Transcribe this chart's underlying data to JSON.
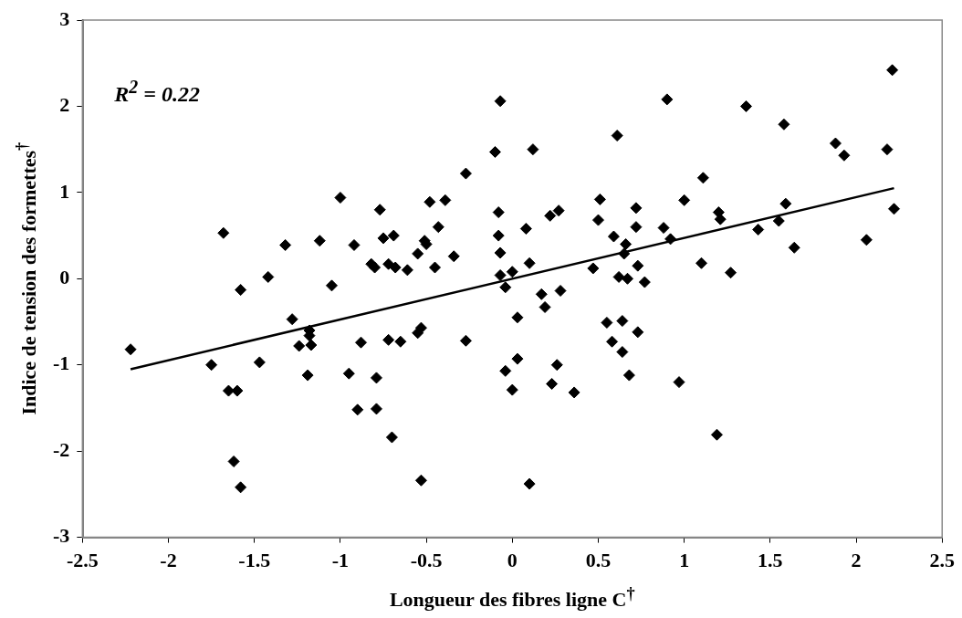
{
  "chart_data": {
    "type": "scatter",
    "xlabel": "Longueur des fibres ligne C$^{†}$",
    "ylabel": "Indice de tension des formettes$^{†}$",
    "annotations": [
      "R$^{2}$ = 0.22"
    ],
    "xlim": [
      -2.5,
      2.5
    ],
    "xticks": [
      -2.5,
      -2,
      -1.5,
      -1,
      -0.5,
      0,
      0.5,
      1,
      1.5,
      2,
      2.5
    ],
    "ylim": [
      -3,
      3
    ],
    "yticks": [
      -3,
      -2,
      -1,
      0,
      1,
      2,
      3
    ],
    "grid": false,
    "legend": false,
    "series": [
      {
        "marker": "diamond",
        "color": "#000000",
        "x": [
          -2.22,
          -1.75,
          -1.68,
          -1.65,
          -1.6,
          -1.62,
          -1.58,
          -1.58,
          -1.47,
          -1.42,
          -1.32,
          -1.28,
          -1.24,
          -1.19,
          -1.18,
          -1.18,
          -1.17,
          -1.12,
          -1.05,
          -1.0,
          -0.95,
          -0.92,
          -0.9,
          -0.88,
          -0.82,
          -0.8,
          -0.79,
          -0.79,
          -0.77,
          -0.75,
          -0.72,
          -0.72,
          -0.7,
          -0.69,
          -0.68,
          -0.65,
          -0.61,
          -0.55,
          -0.55,
          -0.53,
          -0.53,
          -0.51,
          -0.5,
          -0.48,
          -0.45,
          -0.43,
          -0.39,
          -0.34,
          -0.27,
          -0.27,
          -0.1,
          -0.08,
          -0.08,
          -0.07,
          -0.07,
          -0.07,
          -0.04,
          -0.04,
          0.0,
          0.0,
          0.03,
          0.03,
          0.08,
          0.1,
          0.1,
          0.12,
          0.17,
          0.19,
          0.22,
          0.23,
          0.26,
          0.27,
          0.28,
          0.36,
          0.47,
          0.5,
          0.51,
          0.55,
          0.58,
          0.59,
          0.61,
          0.62,
          0.64,
          0.64,
          0.65,
          0.66,
          0.67,
          0.68,
          0.72,
          0.72,
          0.73,
          0.73,
          0.77,
          0.88,
          0.9,
          0.92,
          0.97,
          1.0,
          1.1,
          1.11,
          1.19,
          1.2,
          1.21,
          1.27,
          1.36,
          1.43,
          1.55,
          1.58,
          1.59,
          1.64,
          1.88,
          1.93,
          2.06,
          2.18,
          2.21,
          2.22
        ],
        "values": [
          -0.82,
          -1.0,
          0.53,
          -1.3,
          -1.3,
          -2.12,
          -2.42,
          -0.13,
          -0.97,
          0.02,
          0.39,
          -0.47,
          -0.78,
          -1.12,
          -0.6,
          -0.66,
          -0.77,
          0.44,
          -0.08,
          0.94,
          -1.1,
          0.39,
          -1.52,
          -0.74,
          0.17,
          0.13,
          -1.15,
          -1.51,
          0.8,
          0.47,
          0.17,
          -0.71,
          -1.84,
          0.5,
          0.13,
          -0.73,
          0.1,
          0.29,
          -0.63,
          -0.57,
          -2.34,
          0.44,
          0.4,
          0.89,
          0.13,
          0.6,
          0.91,
          0.26,
          1.22,
          -0.72,
          1.47,
          0.77,
          0.5,
          0.04,
          0.3,
          2.06,
          -0.1,
          -1.07,
          0.08,
          -1.29,
          -0.93,
          -0.45,
          0.58,
          0.18,
          -2.38,
          1.5,
          -0.18,
          -0.33,
          0.73,
          -1.22,
          -1.0,
          0.79,
          -0.14,
          -1.32,
          0.12,
          0.68,
          0.92,
          -0.51,
          -0.73,
          0.49,
          1.66,
          0.02,
          -0.49,
          -0.85,
          0.29,
          0.4,
          0.0,
          -1.12,
          0.82,
          0.6,
          0.15,
          -0.62,
          -0.04,
          0.59,
          2.08,
          0.46,
          -1.2,
          0.91,
          0.18,
          1.17,
          -1.81,
          0.77,
          0.69,
          0.07,
          2.0,
          0.57,
          0.67,
          1.79,
          0.87,
          0.36,
          1.57,
          1.43,
          0.45,
          1.5,
          2.42,
          0.81
        ]
      },
      {
        "type": "line",
        "marker": "none",
        "line_style": "solid",
        "color": "#000000",
        "x": [
          -2.22,
          2.22
        ],
        "values": [
          -1.05,
          1.05
        ]
      }
    ]
  }
}
